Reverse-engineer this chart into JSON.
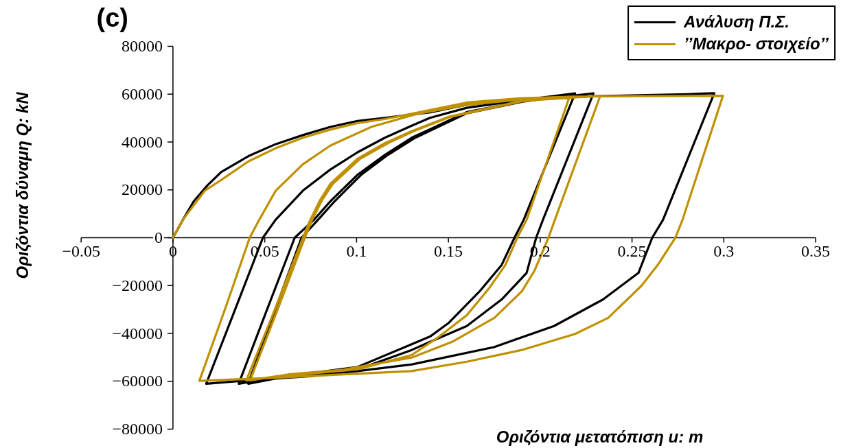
{
  "chart_data": {
    "type": "line",
    "title": "(c)",
    "xlabel": "Οριζόντια μετατόπιση u: m",
    "ylabel": "Οριζόντια δύναμη Q: kN",
    "xlim": [
      -0.05,
      0.35
    ],
    "ylim": [
      -80000,
      80000
    ],
    "xticks": [
      {
        "value": -0.05,
        "label": "−0.05"
      },
      0,
      0.05,
      0.1,
      0.15,
      0.2,
      0.25,
      0.3,
      0.35
    ],
    "yticks": [
      {
        "value": -80000,
        "label": "−80000"
      },
      {
        "value": -60000,
        "label": "−60000"
      },
      {
        "value": -40000,
        "label": "−40000"
      },
      {
        "value": -20000,
        "label": "−20000"
      },
      0,
      20000,
      40000,
      60000,
      80000
    ],
    "legend": "top right",
    "series": [
      {
        "name": "Ανάλυση Π.Σ.",
        "color": "#000000",
        "x": [
          0,
          0.0058,
          0.0113,
          0.0188,
          0.0262,
          0.0411,
          0.0559,
          0.0708,
          0.0857,
          0.1005,
          0.1154,
          0.1302,
          0.1403,
          0.16,
          0.19,
          0.219,
          0.249,
          0.28,
          0.2948,
          0.2669,
          0.261,
          0.2535,
          0.2342,
          0.2075,
          0.1748,
          0.1302,
          0.1005,
          0.0745,
          0.0374,
          0.0181,
          0.0336,
          0.049,
          0.0559,
          0.0708,
          0.0857,
          0.1005,
          0.1154,
          0.13,
          0.14,
          0.16,
          0.19,
          0.219,
          0.191,
          0.186,
          0.179,
          0.167,
          0.15,
          0.14,
          0.13,
          0.1005,
          0.056,
          0.0358,
          0.051,
          0.0663,
          0.0768,
          0.0857,
          0.1005,
          0.1154,
          0.13,
          0.14,
          0.16,
          0.19,
          0.229,
          0.2015,
          0.1978,
          0.1926,
          0.179,
          0.16,
          0.14,
          0.13,
          0.1005,
          0.056,
          0.041,
          0.0555,
          0.07,
          0.079,
          0.088,
          0.1025,
          0.117,
          0.132,
          0.16,
          0.19,
          0.218
        ],
        "values": [
          0,
          8000,
          15200,
          21900,
          27400,
          34100,
          39100,
          42900,
          46300,
          48800,
          50100,
          51500,
          52400,
          55600,
          57800,
          58900,
          59500,
          60000,
          60400,
          7500,
          0,
          -14700,
          -25800,
          -36900,
          -45700,
          -52900,
          -55700,
          -57900,
          -59800,
          -61000,
          -30500,
          0,
          7500,
          19700,
          28500,
          35700,
          41800,
          46800,
          50100,
          54300,
          57500,
          60300,
          7500,
          0,
          -11400,
          -22400,
          -35700,
          -41300,
          -44500,
          -54000,
          -58400,
          -61000,
          -30500,
          0,
          7500,
          15200,
          26300,
          34600,
          41800,
          45300,
          52500,
          57000,
          60300,
          7500,
          0,
          -14700,
          -25800,
          -36900,
          -43500,
          -46900,
          -55000,
          -58800,
          -61000,
          -30500,
          0,
          7500,
          15200,
          26300,
          34600,
          41800,
          52000,
          56800,
          59800
        ]
      },
      {
        "name": "’’Μακρο- στοιχείο’’",
        "color": "#bf9000",
        "x": [
          0,
          0.0054,
          0.0174,
          0.0262,
          0.0411,
          0.0559,
          0.0708,
          0.0857,
          0.1005,
          0.1154,
          0.13,
          0.16,
          0.19,
          0.219,
          0.25,
          0.2995,
          0.2775,
          0.2736,
          0.264,
          0.255,
          0.237,
          0.219,
          0.19,
          0.16,
          0.13,
          0.093,
          0.056,
          0.0144,
          0.0292,
          0.0418,
          0.047,
          0.056,
          0.0708,
          0.0857,
          0.108,
          0.133,
          0.16,
          0.19,
          0.216,
          0.1926,
          0.1875,
          0.181,
          0.172,
          0.16,
          0.145,
          0.13,
          0.1005,
          0.056,
          0.04,
          0.0555,
          0.0708,
          0.0745,
          0.08,
          0.0857,
          0.1005,
          0.1154,
          0.13,
          0.15,
          0.19,
          0.2327,
          0.208,
          0.2045,
          0.197,
          0.19,
          0.175,
          0.152,
          0.13,
          0.093,
          0.063,
          0.042,
          0.057,
          0.0718,
          0.0755,
          0.081,
          0.087,
          0.102,
          0.117,
          0.131,
          0.151,
          0.19,
          0.218
        ],
        "values": [
          0,
          7500,
          19700,
          24100,
          31900,
          37400,
          41800,
          45200,
          47900,
          49600,
          51800,
          56500,
          58300,
          59000,
          59200,
          59300,
          7500,
          0,
          -11400,
          -20200,
          -33500,
          -40200,
          -46900,
          -51800,
          -55700,
          -57100,
          -58500,
          -59800,
          -28000,
          0,
          7500,
          19700,
          30700,
          38500,
          46300,
          51800,
          55500,
          57800,
          59000,
          7500,
          0,
          -11400,
          -21300,
          -32400,
          -41300,
          -49000,
          -55000,
          -58000,
          -59600,
          -30000,
          0,
          7000,
          15500,
          22500,
          33000,
          39500,
          44500,
          50500,
          57200,
          59300,
          7500,
          0,
          -13600,
          -22400,
          -33500,
          -43500,
          -50100,
          -55100,
          -57100,
          -59600,
          -30000,
          0,
          7000,
          15500,
          22500,
          33000,
          39500,
          44500,
          50500,
          57000,
          59000
        ]
      }
    ]
  }
}
